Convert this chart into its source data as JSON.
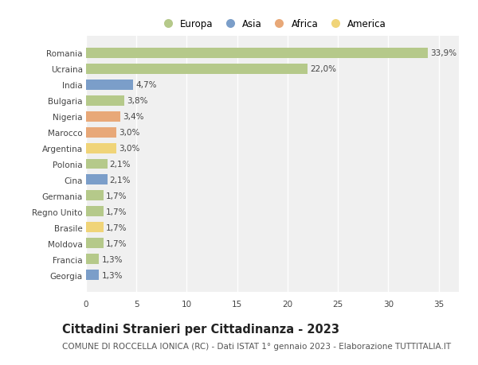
{
  "categories": [
    "Georgia",
    "Francia",
    "Moldova",
    "Brasile",
    "Regno Unito",
    "Germania",
    "Cina",
    "Polonia",
    "Argentina",
    "Marocco",
    "Nigeria",
    "Bulgaria",
    "India",
    "Ucraina",
    "Romania"
  ],
  "values": [
    1.3,
    1.3,
    1.7,
    1.7,
    1.7,
    1.7,
    2.1,
    2.1,
    3.0,
    3.0,
    3.4,
    3.8,
    4.7,
    22.0,
    33.9
  ],
  "labels": [
    "1,3%",
    "1,3%",
    "1,7%",
    "1,7%",
    "1,7%",
    "1,7%",
    "2,1%",
    "2,1%",
    "3,0%",
    "3,0%",
    "3,4%",
    "3,8%",
    "4,7%",
    "22,0%",
    "33,9%"
  ],
  "colors": [
    "#7b9ec9",
    "#b5c98a",
    "#b5c98a",
    "#f0d478",
    "#b5c98a",
    "#b5c98a",
    "#7b9ec9",
    "#b5c98a",
    "#f0d478",
    "#e8a878",
    "#e8a878",
    "#b5c98a",
    "#7b9ec9",
    "#b5c98a",
    "#b5c98a"
  ],
  "legend_labels": [
    "Europa",
    "Asia",
    "Africa",
    "America"
  ],
  "legend_colors": [
    "#b5c98a",
    "#7b9ec9",
    "#e8a878",
    "#f0d478"
  ],
  "title": "Cittadini Stranieri per Cittadinanza - 2023",
  "subtitle": "COMUNE DI ROCCELLA IONICA (RC) - Dati ISTAT 1° gennaio 2023 - Elaborazione TUTTITALIA.IT",
  "xlim": [
    0,
    37
  ],
  "xticks": [
    0,
    5,
    10,
    15,
    20,
    25,
    30,
    35
  ],
  "background_color": "#ffffff",
  "plot_bg_color": "#f0f0f0",
  "grid_color": "#ffffff",
  "bar_height": 0.65,
  "title_fontsize": 10.5,
  "subtitle_fontsize": 7.5,
  "label_fontsize": 7.5,
  "tick_fontsize": 7.5,
  "legend_fontsize": 8.5
}
